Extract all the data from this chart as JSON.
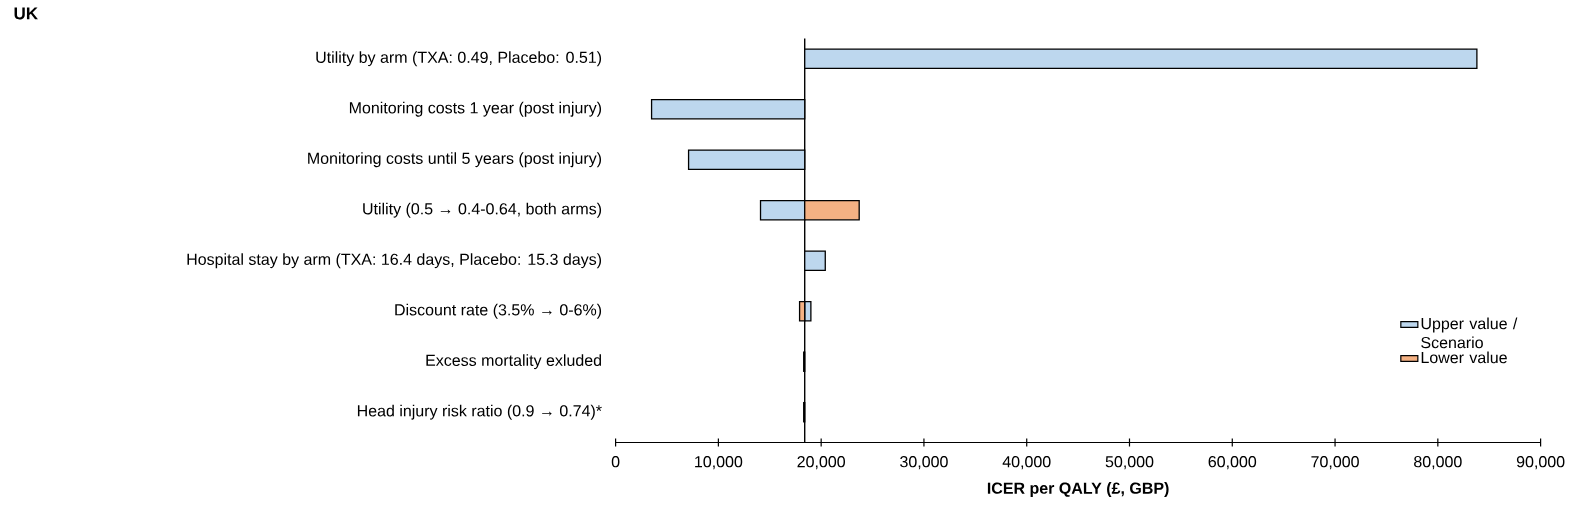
{
  "chart_data": {
    "type": "bar",
    "orientation": "horizontal",
    "title": "UK",
    "xlabel": "ICER per QALY (£, GBP)",
    "categories": [
      "Utility by arm (TXA: 0.49, Placebo: 0.51)",
      "Monitoring costs 1 year (post injury)",
      "Monitoring costs until 5 years (post injury)",
      "Utility (0.5 → 0.4-0.64, both arms)",
      "Hospital stay by arm (TXA: 16.4 days, Placebo: 15.3 days)",
      "Discount rate (3.5% → 0-6%)",
      "Excess mortality exluded",
      "Head injury risk ratio (0.9 → 0.74)*"
    ],
    "series": [
      {
        "name": "Upper value / Scenario",
        "color": "#bdd7ee",
        "base": [
          18400,
          3500,
          7100,
          14100,
          18400,
          18400,
          18300,
          18300
        ],
        "values": [
          65400,
          14900,
          11300,
          4300,
          2000,
          600,
          100,
          100
        ]
      },
      {
        "name": "Lower value",
        "color": "#f4b183",
        "base": [
          null,
          null,
          null,
          18400,
          null,
          17900,
          null,
          null
        ],
        "values": [
          null,
          null,
          null,
          5300,
          null,
          500,
          null,
          null
        ]
      }
    ],
    "ref_lines": [
      {
        "axis": "x",
        "value": 18400
      }
    ],
    "xlim": [
      0,
      90000
    ],
    "xticks": [
      0,
      {
        "value": 10000,
        "label": "10,000"
      },
      {
        "value": 20000,
        "label": "20,000"
      },
      {
        "value": 30000,
        "label": "30,000"
      },
      {
        "value": 40000,
        "label": "40,000"
      },
      {
        "value": 50000,
        "label": "50,000"
      },
      {
        "value": 60000,
        "label": "60,000"
      },
      {
        "value": 70000,
        "label": "70,000"
      },
      {
        "value": 80000,
        "label": "80,000"
      },
      {
        "value": 90000,
        "label": "90,000"
      }
    ],
    "grid": false,
    "legend": "right"
  }
}
